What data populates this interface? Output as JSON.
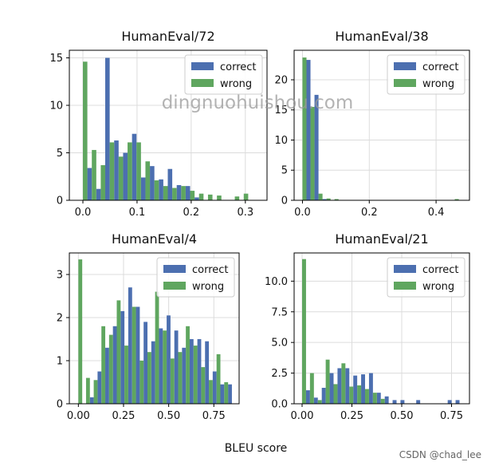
{
  "figure": {
    "xlabel": "BLEU score",
    "watermark": "dingnuohuishou.com",
    "credit": "CSDN @chad_lee"
  },
  "colors": {
    "correct": "#4c6fb0",
    "wrong": "#5fa65f",
    "grid": "#dcdcdc"
  },
  "chart_data": [
    {
      "type": "bar",
      "title": "HumanEval/72",
      "legend": [
        "correct",
        "wrong"
      ],
      "legend_position": "top-right",
      "grid": true,
      "xlim": [
        -0.025,
        0.34
      ],
      "ylim": [
        0,
        15.8
      ],
      "xticks": [
        0.0,
        0.1,
        0.2,
        0.3
      ],
      "xtick_labels": [
        "0.0",
        "0.1",
        "0.2",
        "0.3"
      ],
      "yticks": [
        0,
        5,
        10,
        15
      ],
      "ytick_labels": [
        "0",
        "5",
        "10",
        "15"
      ],
      "bin_width": 0.0165,
      "x": [
        0.0,
        0.0165,
        0.033,
        0.0495,
        0.066,
        0.0825,
        0.099,
        0.1155,
        0.132,
        0.1485,
        0.165,
        0.1815,
        0.198,
        0.2145,
        0.231,
        0.2475,
        0.264,
        0.2805,
        0.297,
        0.3135
      ],
      "series": [
        {
          "name": "correct",
          "values": [
            3.4,
            1.2,
            15.0,
            6.3,
            5.0,
            7.0,
            2.4,
            3.6,
            2.2,
            3.3,
            1.6,
            1.5,
            0.3,
            0,
            0,
            0,
            0,
            0,
            0,
            0
          ]
        },
        {
          "name": "wrong",
          "values": [
            14.6,
            5.3,
            3.7,
            6.1,
            4.6,
            6.1,
            6.1,
            4.1,
            2.1,
            1.5,
            1.3,
            1.5,
            1.0,
            0.7,
            0.6,
            0.5,
            0,
            0.4,
            0.7,
            0
          ]
        }
      ]
    },
    {
      "type": "bar",
      "title": "HumanEval/38",
      "legend": [
        "correct",
        "wrong"
      ],
      "legend_position": "top-right",
      "grid": true,
      "xlim": [
        -0.025,
        0.5
      ],
      "ylim": [
        0,
        24.9
      ],
      "xticks": [
        0.0,
        0.2,
        0.4
      ],
      "xtick_labels": [
        "0.0",
        "0.2",
        "0.4"
      ],
      "yticks": [
        0,
        5,
        10,
        15,
        20
      ],
      "ytick_labels": [
        "0",
        "5",
        "10",
        "15",
        "20"
      ],
      "bin_width": 0.024,
      "x": [
        0.0,
        0.024,
        0.048,
        0.072,
        0.096,
        0.12,
        0.144,
        0.168,
        0.192,
        0.216,
        0.24,
        0.264,
        0.288,
        0.312,
        0.336,
        0.36,
        0.384,
        0.408,
        0.432,
        0.456
      ],
      "series": [
        {
          "name": "correct",
          "values": [
            23.3,
            17.5,
            0.2,
            0,
            0,
            0,
            0,
            0,
            0,
            0,
            0,
            0,
            0,
            0,
            0,
            0,
            0,
            0,
            0,
            0
          ]
        },
        {
          "name": "wrong",
          "values": [
            23.7,
            15.5,
            1.1,
            0.3,
            0.2,
            0,
            0,
            0,
            0,
            0,
            0,
            0,
            0,
            0,
            0,
            0,
            0,
            0,
            0,
            0.2
          ]
        }
      ]
    },
    {
      "type": "bar",
      "title": "HumanEval/4",
      "legend": [
        "correct",
        "wrong"
      ],
      "legend_position": "top-right",
      "grid": true,
      "xlim": [
        -0.05,
        0.89
      ],
      "ylim": [
        0,
        3.5
      ],
      "xticks": [
        0.0,
        0.25,
        0.5,
        0.75
      ],
      "xtick_labels": [
        "0.00",
        "0.25",
        "0.50",
        "0.75"
      ],
      "yticks": [
        0,
        1,
        2,
        3
      ],
      "ytick_labels": [
        "0",
        "1",
        "2",
        "3"
      ],
      "bin_width": 0.0425,
      "x": [
        0.0,
        0.0425,
        0.085,
        0.1275,
        0.17,
        0.2125,
        0.255,
        0.2975,
        0.34,
        0.3825,
        0.425,
        0.4675,
        0.51,
        0.5525,
        0.595,
        0.6375,
        0.68,
        0.7225,
        0.765,
        0.8075
      ],
      "series": [
        {
          "name": "correct",
          "values": [
            0,
            0.15,
            0.75,
            1.3,
            1.8,
            2.15,
            2.7,
            2.25,
            1.9,
            1.45,
            1.75,
            2.05,
            1.7,
            1.3,
            1.5,
            1.5,
            1.45,
            0.75,
            0.45,
            0.45
          ]
        },
        {
          "name": "wrong",
          "values": [
            3.35,
            0.6,
            0.55,
            1.8,
            1.6,
            2.4,
            1.35,
            2.25,
            1.0,
            1.2,
            2.6,
            1.7,
            1.05,
            1.2,
            1.8,
            1.35,
            0.85,
            0.55,
            1.15,
            0.5
          ]
        }
      ]
    },
    {
      "type": "bar",
      "title": "HumanEval/21",
      "legend": [
        "correct",
        "wrong"
      ],
      "legend_position": "top-right",
      "grid": true,
      "xlim": [
        -0.04,
        0.84
      ],
      "ylim": [
        0,
        12.3
      ],
      "xticks": [
        0.0,
        0.25,
        0.5,
        0.75
      ],
      "xtick_labels": [
        "0.00",
        "0.25",
        "0.50",
        "0.75"
      ],
      "yticks": [
        0.0,
        2.5,
        5.0,
        7.5,
        10.0
      ],
      "ytick_labels": [
        "0.0",
        "2.5",
        "5.0",
        "7.5",
        "10.0"
      ],
      "bin_width": 0.0395,
      "x": [
        0.0,
        0.0395,
        0.079,
        0.1185,
        0.158,
        0.1975,
        0.237,
        0.2765,
        0.316,
        0.3555,
        0.395,
        0.4345,
        0.474,
        0.5135,
        0.553,
        0.5925,
        0.632,
        0.6715,
        0.711,
        0.7505
      ],
      "series": [
        {
          "name": "correct",
          "values": [
            1.1,
            0.5,
            1.3,
            2.5,
            2.9,
            2.9,
            2.3,
            2.4,
            2.5,
            0.9,
            0.6,
            0.3,
            0.3,
            0,
            0.3,
            0,
            0,
            0,
            0.3,
            0.3
          ]
        },
        {
          "name": "wrong",
          "values": [
            11.8,
            2.5,
            0.3,
            3.6,
            1.6,
            3.3,
            1.4,
            1.5,
            1.2,
            0.9,
            0.4,
            0,
            0,
            0,
            0,
            0,
            0,
            0,
            0,
            0
          ]
        }
      ]
    }
  ]
}
